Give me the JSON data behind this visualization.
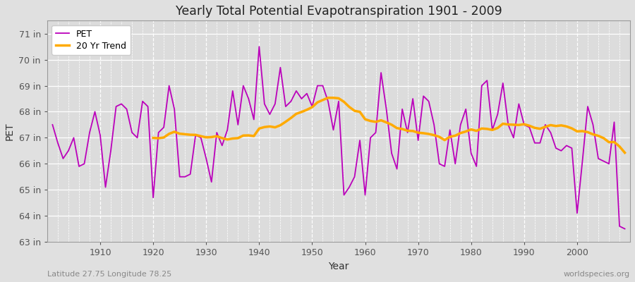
{
  "title": "Yearly Total Potential Evapotranspiration 1901 - 2009",
  "xlabel": "Year",
  "ylabel": "PET",
  "subtitle_left": "Latitude 27.75 Longitude 78.25",
  "subtitle_right": "worldspecies.org",
  "pet_color": "#bb00bb",
  "trend_color": "#ffaa00",
  "fig_bg_color": "#e0e0e0",
  "plot_bg_color": "#dcdcdc",
  "ylim": [
    63,
    71.5
  ],
  "yticks": [
    63,
    64,
    65,
    66,
    67,
    68,
    69,
    70,
    71
  ],
  "years": [
    1901,
    1902,
    1903,
    1904,
    1905,
    1906,
    1907,
    1908,
    1909,
    1910,
    1911,
    1912,
    1913,
    1914,
    1915,
    1916,
    1917,
    1918,
    1919,
    1920,
    1921,
    1922,
    1923,
    1924,
    1925,
    1926,
    1927,
    1928,
    1929,
    1930,
    1931,
    1932,
    1933,
    1934,
    1935,
    1936,
    1937,
    1938,
    1939,
    1940,
    1941,
    1942,
    1943,
    1944,
    1945,
    1946,
    1947,
    1948,
    1949,
    1950,
    1951,
    1952,
    1953,
    1954,
    1955,
    1956,
    1957,
    1958,
    1959,
    1960,
    1961,
    1962,
    1963,
    1964,
    1965,
    1966,
    1967,
    1968,
    1969,
    1970,
    1971,
    1972,
    1973,
    1974,
    1975,
    1976,
    1977,
    1978,
    1979,
    1980,
    1981,
    1982,
    1983,
    1984,
    1985,
    1986,
    1987,
    1988,
    1989,
    1990,
    1991,
    1992,
    1993,
    1994,
    1995,
    1996,
    1997,
    1998,
    1999,
    2000,
    2001,
    2002,
    2003,
    2004,
    2005,
    2006,
    2007,
    2008,
    2009
  ],
  "pet_values": [
    67.5,
    66.8,
    66.2,
    66.5,
    67.0,
    65.9,
    66.0,
    67.2,
    68.0,
    67.1,
    65.1,
    66.5,
    68.2,
    68.3,
    68.1,
    67.2,
    67.0,
    68.4,
    68.2,
    64.7,
    67.2,
    67.4,
    69.0,
    68.1,
    65.5,
    65.5,
    65.6,
    67.1,
    67.0,
    66.2,
    65.3,
    67.2,
    66.7,
    67.3,
    68.8,
    67.5,
    69.0,
    68.5,
    67.7,
    70.5,
    68.3,
    67.9,
    68.3,
    69.7,
    68.2,
    68.4,
    68.8,
    68.5,
    68.7,
    68.2,
    69.0,
    69.0,
    68.4,
    67.3,
    68.4,
    64.8,
    65.1,
    65.5,
    66.9,
    64.8,
    67.0,
    67.2,
    69.5,
    68.1,
    66.4,
    65.8,
    68.1,
    67.2,
    68.5,
    66.9,
    68.6,
    68.4,
    67.5,
    66.0,
    65.9,
    67.3,
    66.0,
    67.5,
    68.1,
    66.4,
    65.9,
    69.0,
    69.2,
    67.3,
    67.9,
    69.1,
    67.5,
    67.0,
    68.3,
    67.5,
    67.4,
    66.8,
    66.8,
    67.5,
    67.2,
    66.6,
    66.5,
    66.7,
    66.6,
    64.1,
    66.1,
    68.2,
    67.5,
    66.2,
    66.1,
    66.0,
    67.6,
    63.6,
    63.5
  ],
  "xtick_positions": [
    1910,
    1920,
    1930,
    1940,
    1950,
    1960,
    1970,
    1980,
    1990,
    2000
  ],
  "legend_pet_label": "PET",
  "legend_trend_label": "20 Yr Trend",
  "trend_window": 20
}
